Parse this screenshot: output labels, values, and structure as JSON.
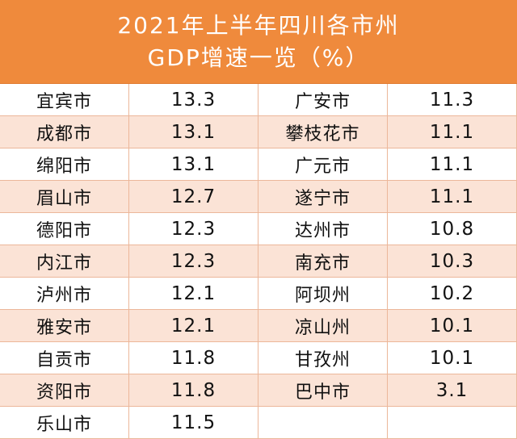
{
  "header": {
    "title": [
      "2021年上半年四川各市州",
      "GDP增速一览（%）"
    ]
  },
  "table": {
    "rows": [
      [
        "宜宾市",
        13.3,
        "广安市",
        11.3
      ],
      [
        "成都市",
        13.1,
        "攀枝花市",
        11.1
      ],
      [
        "绵阳市",
        13.1,
        "广元市",
        11.1
      ],
      [
        "眉山市",
        12.7,
        "遂宁市",
        11.1
      ],
      [
        "德阳市",
        12.3,
        "达州市",
        10.8
      ],
      [
        "内江市",
        12.3,
        "南充市",
        10.3
      ],
      [
        "泸州市",
        12.1,
        "阿坝州",
        10.2
      ],
      [
        "雅安市",
        12.1,
        "凉山州",
        10.1
      ],
      [
        "自贡市",
        11.8,
        "甘孜州",
        10.1
      ],
      [
        "资阳市",
        11.8,
        "巴中市",
        3.1
      ],
      [
        "乐山市",
        11.5
      ]
    ]
  }
}
